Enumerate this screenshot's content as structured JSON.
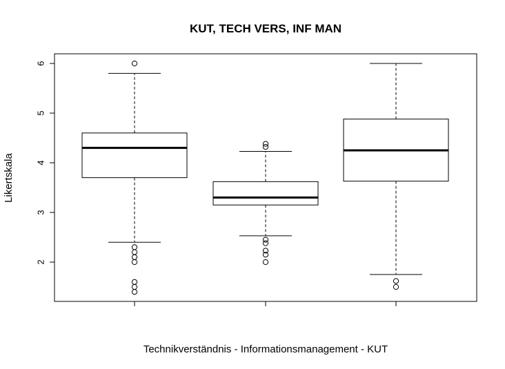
{
  "chart_data": {
    "type": "boxplot",
    "title": "KUT, TECH VERS, INF MAN",
    "xlabel": "Technikverständnis - Informationsmanagement - KUT",
    "ylabel": "Likertskala",
    "ylim": [
      1.35,
      6.2
    ],
    "yticks": [
      2,
      3,
      4,
      5,
      6
    ],
    "grid": false,
    "legend": "none",
    "boxes": [
      {
        "lower_whisker": 2.4,
        "q1": 3.7,
        "median": 4.3,
        "q3": 4.6,
        "upper_whisker": 5.8,
        "outliers": [
          6.0,
          2.3,
          2.2,
          2.1,
          2.0,
          1.6,
          1.5,
          1.4
        ]
      },
      {
        "lower_whisker": 2.53,
        "q1": 3.15,
        "median": 3.3,
        "q3": 3.62,
        "upper_whisker": 4.23,
        "outliers": [
          4.38,
          4.32,
          2.45,
          2.38,
          2.23,
          2.15,
          2.0
        ]
      },
      {
        "lower_whisker": 1.75,
        "q1": 3.63,
        "median": 4.25,
        "q3": 4.88,
        "upper_whisker": 6.0,
        "outliers": [
          1.62,
          1.5
        ]
      }
    ]
  }
}
